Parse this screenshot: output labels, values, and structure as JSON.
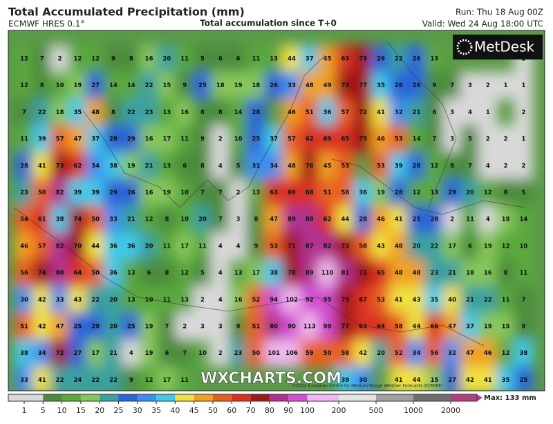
{
  "header": {
    "title": "Total Accumulated Precipitation (mm)",
    "model": "ECMWF HRES 0.1°",
    "subtitle": "Total accumulation since T+0",
    "run": "Run: Thu 18 Aug 00Z",
    "valid": "Valid: Wed 24 Aug 18:00 UTC"
  },
  "logo": "MetDesk",
  "watermark": "WXCHARTS.COM",
  "copyright": "©2022 European Centre for Medium-Range Weather Forecasts (ECMWF)",
  "legend": {
    "ticks": [
      1,
      5,
      10,
      15,
      20,
      25,
      30,
      35,
      40,
      45,
      50,
      60,
      70,
      80,
      90,
      100,
      200,
      500,
      1000,
      2000
    ],
    "colors": [
      "#d8d8d8",
      "#4c8c3c",
      "#5aa83e",
      "#86c65a",
      "#3aa0a0",
      "#2a64d8",
      "#3c8ef0",
      "#40c8e8",
      "#f0e040",
      "#f0a020",
      "#e86020",
      "#d83020",
      "#a01818",
      "#b03090",
      "#d050d0",
      "#f0b8f0",
      "#e4e4e4",
      "#a0a0a0",
      "#707070",
      "#b04080"
    ],
    "max": "Max: 133 mm"
  },
  "grid": [
    [
      12,
      7,
      2,
      12,
      12,
      9,
      8,
      16,
      20,
      11,
      5,
      6,
      6,
      11,
      13,
      44,
      37,
      45,
      63,
      73,
      29,
      22,
      26,
      13,
      null,
      null,
      null,
      null,
      2
    ],
    [
      12,
      8,
      10,
      19,
      27,
      14,
      14,
      22,
      15,
      9,
      25,
      18,
      19,
      18,
      26,
      33,
      48,
      49,
      73,
      77,
      35,
      26,
      26,
      9,
      7,
      3,
      2,
      1,
      1
    ],
    [
      7,
      22,
      18,
      35,
      48,
      8,
      22,
      23,
      13,
      16,
      8,
      8,
      14,
      28,
      null,
      46,
      51,
      36,
      57,
      72,
      41,
      32,
      21,
      6,
      3,
      4,
      1,
      null,
      2
    ],
    [
      11,
      39,
      57,
      47,
      37,
      28,
      29,
      16,
      17,
      11,
      9,
      2,
      10,
      25,
      37,
      57,
      62,
      69,
      65,
      75,
      46,
      53,
      14,
      7,
      3,
      5,
      2,
      2,
      1
    ],
    [
      28,
      41,
      73,
      62,
      34,
      38,
      19,
      21,
      13,
      6,
      8,
      4,
      5,
      31,
      34,
      48,
      76,
      45,
      53,
      null,
      53,
      39,
      28,
      12,
      8,
      7,
      4,
      2,
      2
    ],
    [
      23,
      50,
      82,
      39,
      39,
      29,
      26,
      16,
      19,
      10,
      7,
      7,
      2,
      13,
      63,
      69,
      68,
      51,
      58,
      36,
      19,
      28,
      12,
      13,
      29,
      20,
      12,
      8,
      5
    ],
    [
      54,
      61,
      38,
      74,
      50,
      33,
      21,
      12,
      8,
      10,
      20,
      7,
      3,
      8,
      47,
      89,
      88,
      62,
      44,
      28,
      46,
      41,
      25,
      28,
      2,
      11,
      4,
      18,
      14
    ],
    [
      46,
      57,
      82,
      70,
      44,
      36,
      36,
      20,
      11,
      17,
      11,
      4,
      4,
      9,
      53,
      71,
      87,
      82,
      73,
      58,
      43,
      48,
      20,
      22,
      17,
      6,
      19,
      12,
      10
    ],
    [
      56,
      74,
      80,
      64,
      50,
      36,
      13,
      6,
      8,
      12,
      5,
      4,
      13,
      17,
      38,
      78,
      89,
      110,
      81,
      71,
      65,
      48,
      48,
      23,
      21,
      18,
      16,
      8,
      11
    ],
    [
      30,
      42,
      33,
      43,
      22,
      20,
      13,
      10,
      11,
      13,
      2,
      4,
      16,
      52,
      94,
      102,
      92,
      95,
      79,
      67,
      53,
      41,
      43,
      35,
      40,
      21,
      22,
      11,
      7
    ],
    [
      51,
      42,
      47,
      25,
      29,
      20,
      25,
      19,
      7,
      2,
      3,
      3,
      9,
      51,
      80,
      90,
      113,
      99,
      77,
      63,
      64,
      58,
      44,
      66,
      47,
      37,
      19,
      15,
      9
    ],
    [
      38,
      34,
      72,
      27,
      17,
      21,
      4,
      19,
      6,
      7,
      10,
      2,
      23,
      50,
      101,
      106,
      59,
      50,
      58,
      42,
      20,
      52,
      34,
      56,
      32,
      47,
      46,
      12,
      38
    ],
    [
      33,
      41,
      22,
      24,
      22,
      22,
      9,
      12,
      17,
      11,
      null,
      null,
      null,
      null,
      null,
      null,
      null,
      null,
      39,
      30,
      null,
      41,
      44,
      15,
      27,
      42,
      41,
      35,
      25
    ]
  ]
}
